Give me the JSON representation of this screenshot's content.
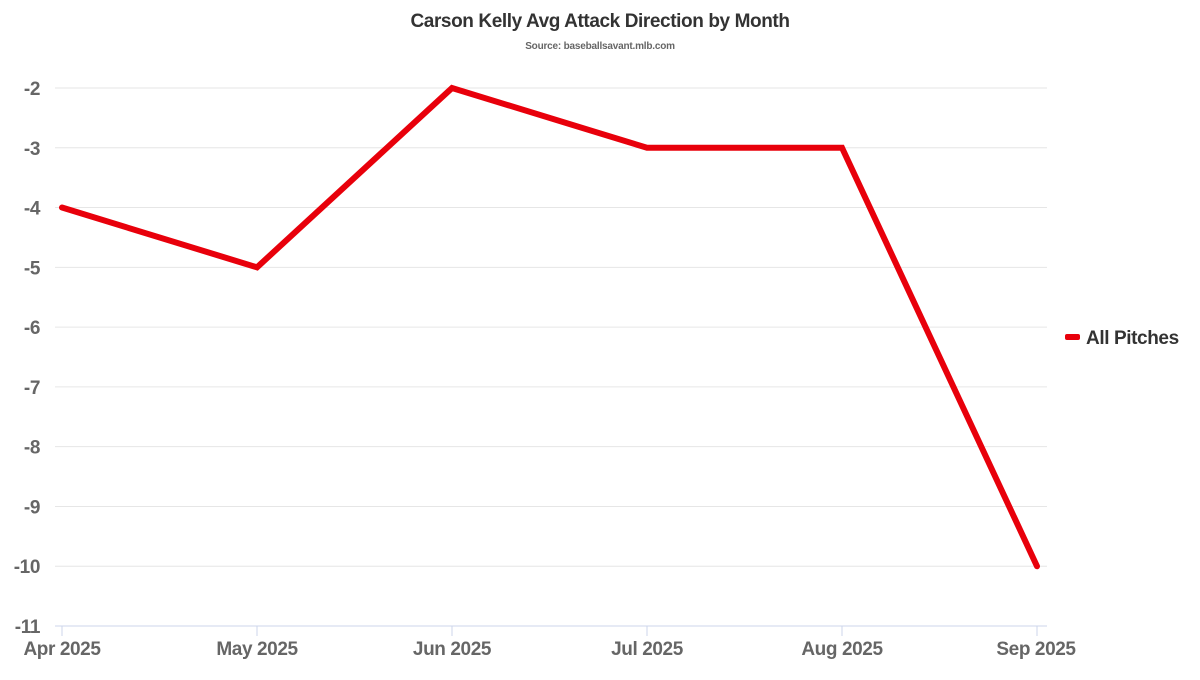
{
  "chart_data": {
    "type": "line",
    "title": "Carson Kelly Avg Attack Direction by Month",
    "subtitle": "Source: baseballsavant.mlb.com",
    "xlabel": "",
    "ylabel": "",
    "categories": [
      "Apr 2025",
      "May 2025",
      "Jun 2025",
      "Jul 2025",
      "Aug 2025",
      "Sep 2025"
    ],
    "series": [
      {
        "name": "All Pitches",
        "color": "#e8000b",
        "values": [
          -4,
          -5,
          -2,
          -3,
          -3,
          -10
        ]
      }
    ],
    "ylim": [
      -11,
      -2
    ],
    "yticks": [
      -2,
      -3,
      -4,
      -5,
      -6,
      -7,
      -8,
      -9,
      -10,
      -11
    ],
    "grid": true,
    "legend_position": "right"
  }
}
